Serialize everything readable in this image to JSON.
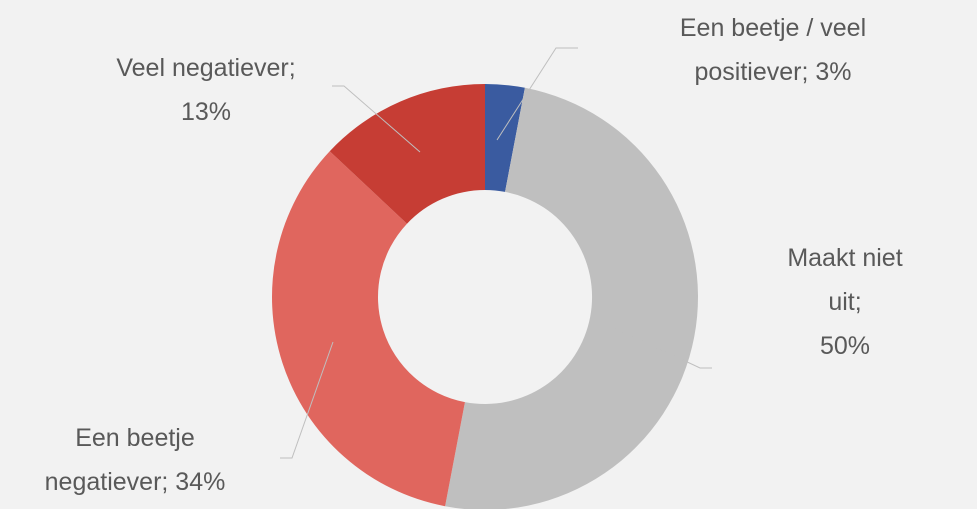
{
  "chart_data": {
    "type": "donut",
    "values": [
      3,
      50,
      34,
      13
    ],
    "value_labels": [
      "Een beetje / veel\npositiever; 3%",
      "Maakt niet uit;\n50%",
      "Een beetje\nnegatiever; 34%",
      "Veel negatiever;\n13%"
    ],
    "colors": [
      "#3a5ba0",
      "#bfbfbf",
      "#e0665e",
      "#c63d34"
    ]
  }
}
